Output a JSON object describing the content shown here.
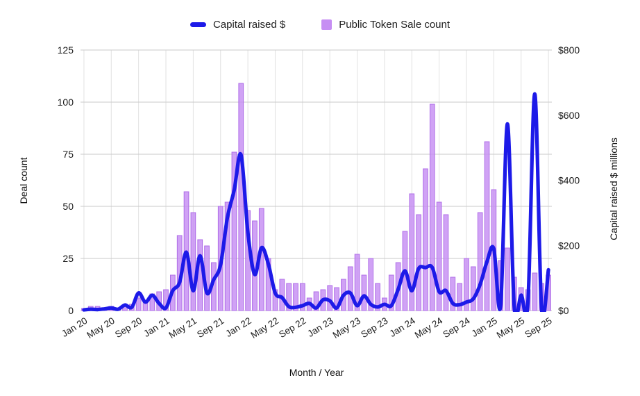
{
  "legend": {
    "capital_label": "Capital raised $",
    "count_label": "Public Token Sale count"
  },
  "axes": {
    "left_title": "Deal count",
    "right_title": "Capital raised $ millions",
    "x_title": "Month / Year"
  },
  "colors": {
    "bar_fill": "#c68ef3",
    "bar_stroke": "#b06fe8",
    "line": "#1d1ae8",
    "hgrid": "#c9c9c9",
    "vgrid": "#e2e2e2",
    "text": "#1a1a1a"
  },
  "chart_data": {
    "type": "combo",
    "title": "",
    "xlabel": "Month / Year",
    "legend_position": "top",
    "grid": true,
    "x": [
      "Jan 20",
      "Feb 20",
      "Mar 20",
      "Apr 20",
      "May 20",
      "Jun 20",
      "Jul 20",
      "Aug 20",
      "Sep 20",
      "Oct 20",
      "Nov 20",
      "Dec 20",
      "Jan 21",
      "Feb 21",
      "Mar 21",
      "Apr 21",
      "May 21",
      "Jun 21",
      "Jul 21",
      "Aug 21",
      "Sep 21",
      "Oct 21",
      "Nov 21",
      "Dec 21",
      "Jan 22",
      "Feb 22",
      "Mar 22",
      "Apr 22",
      "May 22",
      "Jun 22",
      "Jul 22",
      "Aug 22",
      "Sep 22",
      "Oct 22",
      "Nov 22",
      "Dec 22",
      "Jan 23",
      "Feb 23",
      "Mar 23",
      "Apr 23",
      "May 23",
      "Jun 23",
      "Jul 23",
      "Aug 23",
      "Sep 23",
      "Oct 23",
      "Nov 23",
      "Dec 23",
      "Jan 24",
      "Feb 24",
      "Mar 24",
      "Apr 24",
      "May 24",
      "Jun 24",
      "Jul 24",
      "Aug 24",
      "Sep 24",
      "Oct 24",
      "Nov 24",
      "Dec 24",
      "Jan 25",
      "Feb 25",
      "Mar 25",
      "Apr 25",
      "May 25",
      "Jun 25",
      "Jul 25",
      "Aug 25",
      "Sep 25"
    ],
    "x_ticks": [
      "Jan 20",
      "May 20",
      "Sep 20",
      "Jan 21",
      "May 21",
      "Sep 21",
      "Jan 22",
      "May 22",
      "Sep 22",
      "Jan 23",
      "May 23",
      "Sep 23",
      "Jan 24",
      "May 24",
      "Sep 24",
      "Jan 25",
      "May 25",
      "Sep 25"
    ],
    "series": [
      {
        "name": "Public Token Sale count",
        "type": "bar",
        "axis": "left",
        "values": [
          1,
          2,
          2,
          1,
          2,
          1,
          2,
          3,
          6,
          5,
          8,
          9,
          10,
          17,
          36,
          57,
          47,
          34,
          31,
          23,
          50,
          52,
          76,
          109,
          48,
          43,
          49,
          25,
          10,
          15,
          13,
          13,
          13,
          6,
          9,
          10,
          12,
          11,
          15,
          21,
          27,
          17,
          25,
          13,
          6,
          17,
          23,
          38,
          56,
          46,
          68,
          99,
          52,
          46,
          16,
          13,
          25,
          21,
          47,
          81,
          58,
          24,
          30,
          16,
          11,
          10,
          18,
          13,
          17
        ]
      },
      {
        "name": "Capital raised $",
        "type": "line",
        "axis": "right",
        "values": [
          2,
          4,
          3,
          5,
          8,
          4,
          17,
          10,
          54,
          26,
          47,
          22,
          8,
          61,
          86,
          179,
          61,
          168,
          54,
          95,
          140,
          285,
          370,
          478,
          240,
          111,
          193,
          143,
          54,
          40,
          12,
          10,
          15,
          22,
          8,
          33,
          30,
          8,
          47,
          54,
          15,
          45,
          19,
          11,
          19,
          15,
          65,
          122,
          61,
          129,
          132,
          132,
          58,
          61,
          22,
          18,
          26,
          36,
          80,
          150,
          190,
          15,
          573,
          10,
          47,
          26,
          665,
          5,
          125
        ]
      }
    ],
    "y_left": {
      "title": "Deal count",
      "ticks": [
        0,
        25,
        50,
        75,
        100,
        125
      ],
      "min": 0,
      "max": 125
    },
    "y_right": {
      "title": "Capital raised $ millions",
      "ticks": [
        0,
        200,
        400,
        600,
        800
      ],
      "tick_labels": [
        "$0",
        "$200",
        "$400",
        "$600",
        "$800"
      ],
      "min": 0,
      "max": 800
    }
  }
}
